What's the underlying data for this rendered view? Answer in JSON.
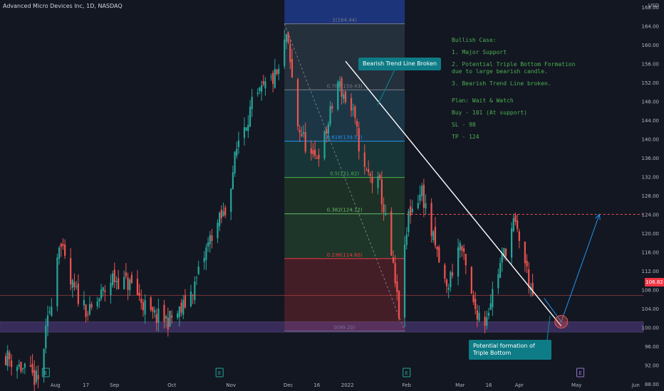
{
  "header": {
    "title": "Advanced Micro Devices Inc, 1D, NASDAQ"
  },
  "price_axis": {
    "currency": "USD",
    "ticks": [
      "168.00",
      "164.00",
      "160.00",
      "156.00",
      "152.00",
      "148.00",
      "144.00",
      "140.00",
      "136.00",
      "132.00",
      "128.00",
      "124.00",
      "120.00",
      "116.00",
      "112.00",
      "108.00",
      "104.00",
      "100.00",
      "96.00",
      "92.00",
      "88.00"
    ],
    "last_price_label": "106.82"
  },
  "time_axis": {
    "labels": [
      {
        "text": "Aug",
        "date": "2021-08-01"
      },
      {
        "text": "17",
        "date": "2021-08-17"
      },
      {
        "text": "Sep",
        "date": "2021-09-01"
      },
      {
        "text": "Oct",
        "date": "2021-10-01"
      },
      {
        "text": "Nov",
        "date": "2021-11-01"
      },
      {
        "text": "Dec",
        "date": "2021-12-01"
      },
      {
        "text": "16",
        "date": "2021-12-16"
      },
      {
        "text": "2022",
        "date": "2022-01-01"
      },
      {
        "text": "Feb",
        "date": "2022-02-01"
      },
      {
        "text": "Mar",
        "date": "2022-03-01"
      },
      {
        "text": "16",
        "date": "2022-03-16"
      },
      {
        "text": "Apr",
        "date": "2022-04-01"
      },
      {
        "text": "May",
        "date": "2022-05-01"
      },
      {
        "text": "Jun",
        "date": "2022-06-01"
      }
    ],
    "earnings_markers": [
      {
        "label": "E",
        "date": "2021-07-27"
      },
      {
        "label": "E",
        "date": "2021-10-26"
      },
      {
        "label": "E",
        "date": "2022-02-01"
      },
      {
        "label": "E",
        "date": "2022-05-03",
        "upcoming": true
      }
    ]
  },
  "fibonacci": {
    "date_range": [
      "2021-11-29",
      "2022-01-31"
    ],
    "levels": [
      {
        "ratio": 1,
        "price": 164.44,
        "label": "1(164.44)",
        "color": "#787b86"
      },
      {
        "ratio": 0.786,
        "price": 150.43,
        "label": "0.786(150.43)",
        "color": "#787b86"
      },
      {
        "ratio": 0.618,
        "price": 139.52,
        "label": "0.618(139.52)",
        "color": "#2196f3"
      },
      {
        "ratio": 0.5,
        "price": 131.82,
        "label": "0.5(131.82)",
        "color": "#4caf50"
      },
      {
        "ratio": 0.382,
        "price": 124.12,
        "label": "0.382(124.12)",
        "color": "#66bb6a"
      },
      {
        "ratio": 0.236,
        "price": 114.6,
        "label": "0.236(114.60)",
        "color": "#f23645"
      },
      {
        "ratio": 0,
        "price": 99.2,
        "label": "0(99.20)",
        "color": "#787b86"
      }
    ]
  },
  "annotations": {
    "trendline_callout": "Bearish Trend Line Broken",
    "bottom_callout": "Potential formation of Triple Bottom",
    "notes": [
      "Bullish Case:",
      "1. Major Support",
      "2. Potential Triple Bottom Formation due to large bearish candle.",
      "3. Bearish Trend Line broken.",
      "Plan: Wait & Watch",
      "Buy - 101 (At support)",
      "SL - 98",
      "TP - 124"
    ]
  },
  "colors": {
    "background": "#131722",
    "up": "#26a69a",
    "down": "#ef5350",
    "support_zone": "#7e57c2",
    "trendline": "#ffffff",
    "projection": "#2196f3",
    "target_line": "#ef5350",
    "notes_text": "#4caf50",
    "callout_bg": "#0e7c86"
  },
  "chart_data": {
    "type": "candlestick",
    "title": "Advanced Micro Devices Inc, 1D, NASDAQ",
    "xlabel": "",
    "ylabel": "",
    "ylim": [
      86.5,
      169.5
    ],
    "x_range": [
      "2021-07-03",
      "2022-06-05"
    ],
    "grid": false,
    "support_zone": [
      99.0,
      101.2
    ],
    "target_level": 124.0,
    "last_price": 106.82,
    "trendline": {
      "from": {
        "date": "2021-12-31",
        "price": 156.5
      },
      "to": {
        "date": "2022-04-23",
        "price": 100.3
      }
    },
    "projection": [
      {
        "date": "2022-04-14",
        "price": 106.2
      },
      {
        "date": "2022-04-23",
        "price": 101.2
      },
      {
        "date": "2022-05-13",
        "price": 124.0
      }
    ],
    "anchors": [
      {
        "date": "2021-07-06",
        "close": 94.0
      },
      {
        "date": "2021-07-23",
        "close": 88.5
      },
      {
        "date": "2021-07-30",
        "close": 106.2
      },
      {
        "date": "2021-08-03",
        "close": 118.5
      },
      {
        "date": "2021-08-09",
        "close": 109.0
      },
      {
        "date": "2021-08-19",
        "close": 103.0
      },
      {
        "date": "2021-08-31",
        "close": 110.5
      },
      {
        "date": "2021-09-10",
        "close": 109.0
      },
      {
        "date": "2021-09-20",
        "close": 102.5
      },
      {
        "date": "2021-09-29",
        "close": 101.5
      },
      {
        "date": "2021-10-06",
        "close": 103.5
      },
      {
        "date": "2021-10-13",
        "close": 109.0
      },
      {
        "date": "2021-10-22",
        "close": 120.0
      },
      {
        "date": "2021-10-29",
        "close": 124.5
      },
      {
        "date": "2021-11-05",
        "close": 140.0
      },
      {
        "date": "2021-11-12",
        "close": 147.0
      },
      {
        "date": "2021-11-19",
        "close": 151.0
      },
      {
        "date": "2021-11-26",
        "close": 154.0
      },
      {
        "date": "2021-11-30",
        "close": 162.0
      },
      {
        "date": "2021-12-06",
        "close": 143.0
      },
      {
        "date": "2021-12-14",
        "close": 135.0
      },
      {
        "date": "2021-12-20",
        "close": 140.0
      },
      {
        "date": "2021-12-27",
        "close": 152.0
      },
      {
        "date": "2022-01-04",
        "close": 145.0
      },
      {
        "date": "2022-01-10",
        "close": 133.0
      },
      {
        "date": "2022-01-18",
        "close": 130.0
      },
      {
        "date": "2022-01-24",
        "close": 115.0
      },
      {
        "date": "2022-01-28",
        "close": 103.0
      },
      {
        "date": "2022-02-02",
        "close": 124.0
      },
      {
        "date": "2022-02-09",
        "close": 129.0
      },
      {
        "date": "2022-02-14",
        "close": 120.0
      },
      {
        "date": "2022-02-22",
        "close": 108.0
      },
      {
        "date": "2022-03-01",
        "close": 118.0
      },
      {
        "date": "2022-03-08",
        "close": 104.5
      },
      {
        "date": "2022-03-14",
        "close": 101.5
      },
      {
        "date": "2022-03-21",
        "close": 112.0
      },
      {
        "date": "2022-03-29",
        "close": 122.0
      },
      {
        "date": "2022-04-01",
        "close": 119.0
      },
      {
        "date": "2022-04-06",
        "close": 110.0
      },
      {
        "date": "2022-04-08",
        "close": 106.82
      }
    ]
  }
}
